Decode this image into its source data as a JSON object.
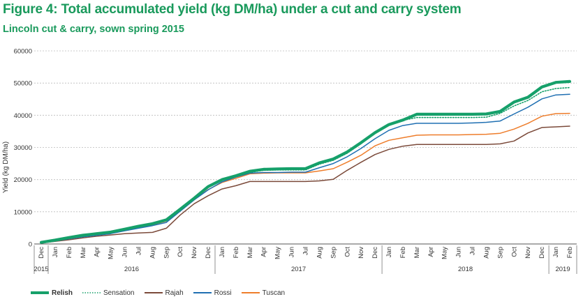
{
  "title": "Figure 4: Total accumulated yield (kg DM/ha) under a cut and carry system",
  "subtitle": "Lincoln cut & carry, sown spring 2015",
  "colors": {
    "title": "#1a9a5c",
    "Relish": "#16a06a",
    "Sensation": "#16a06a",
    "Rajah": "#7b4a3a",
    "Rossi": "#1f6fb2",
    "Tuscan": "#ee7d2b",
    "grid": "#bbbbbb"
  },
  "chart_data": {
    "type": "line",
    "ylabel": "Yield (kg DM/ha)",
    "xlabel": "",
    "ylim": [
      0,
      60000
    ],
    "yticks": [
      0,
      10000,
      20000,
      30000,
      40000,
      50000,
      60000
    ],
    "ytick_labels": [
      "0",
      "10000",
      "20000",
      "30000",
      "40000",
      "50000",
      "60000"
    ],
    "grid": "horizontal dashed",
    "legend": "bottom-left",
    "categories": [
      "Dec",
      "Jan",
      "Feb",
      "Mar",
      "Apr",
      "May",
      "Jun",
      "Jul",
      "Aug",
      "Sep",
      "Oct",
      "Nov",
      "Dec",
      "Jan",
      "Feb",
      "Mar",
      "Apr",
      "May",
      "Jun",
      "Jul",
      "Aug",
      "Sep",
      "Oct",
      "Nov",
      "Dec",
      "Jan",
      "Feb",
      "Mar",
      "Apr",
      "May",
      "Jun",
      "Jul",
      "Aug",
      "Sep",
      "Oct",
      "Nov",
      "Dec",
      "Jan",
      "Feb"
    ],
    "year_groups": [
      {
        "label": "2015",
        "start": 0,
        "end": 0
      },
      {
        "label": "2016",
        "start": 1,
        "end": 12
      },
      {
        "label": "2017",
        "start": 13,
        "end": 24
      },
      {
        "label": "2018",
        "start": 25,
        "end": 36
      },
      {
        "label": "2019",
        "start": 37,
        "end": 38
      }
    ],
    "series": [
      {
        "name": "Relish",
        "style": "thick",
        "values": [
          500,
          1200,
          2000,
          2700,
          3200,
          3700,
          4600,
          5500,
          6300,
          7500,
          10800,
          14200,
          17800,
          20000,
          21200,
          22600,
          23200,
          23300,
          23400,
          23400,
          25200,
          26400,
          28600,
          31500,
          34600,
          37100,
          38500,
          40300,
          40300,
          40300,
          40300,
          40300,
          40400,
          41200,
          44100,
          45600,
          48800,
          50200,
          50500
        ]
      },
      {
        "name": "Sensation",
        "style": "dotted",
        "values": [
          400,
          1100,
          1900,
          2600,
          3100,
          3700,
          4500,
          5400,
          6200,
          7300,
          10600,
          14100,
          17600,
          20200,
          21400,
          22200,
          22900,
          23000,
          23000,
          23000,
          24800,
          26000,
          28200,
          31200,
          34300,
          37000,
          38400,
          39300,
          39300,
          39300,
          39300,
          39300,
          39400,
          40600,
          42900,
          44600,
          47300,
          48300,
          48600
        ]
      },
      {
        "name": "Rajah",
        "style": "solid",
        "values": [
          300,
          800,
          1300,
          1900,
          2400,
          2800,
          3200,
          3400,
          3600,
          4900,
          9000,
          12500,
          15000,
          17100,
          18100,
          19400,
          19400,
          19400,
          19400,
          19400,
          19600,
          20100,
          22900,
          25400,
          27800,
          29400,
          30400,
          30900,
          30900,
          30900,
          30900,
          30900,
          30900,
          31100,
          32000,
          34500,
          36200,
          36400,
          36600
        ]
      },
      {
        "name": "Rossi",
        "style": "solid",
        "values": [
          300,
          900,
          1600,
          2200,
          2700,
          3200,
          4100,
          4900,
          5700,
          6700,
          10200,
          13700,
          16800,
          19300,
          20800,
          22000,
          22200,
          22200,
          22300,
          22300,
          23700,
          25000,
          27100,
          29700,
          32700,
          35300,
          36800,
          37500,
          37500,
          37500,
          37500,
          37600,
          37800,
          38200,
          40400,
          42500,
          45100,
          46300,
          46500
        ]
      },
      {
        "name": "Tuscan",
        "style": "solid",
        "values": [
          400,
          1100,
          1900,
          2500,
          3000,
          3500,
          4300,
          5200,
          5900,
          7100,
          10400,
          13800,
          16900,
          19100,
          20400,
          21800,
          22000,
          22100,
          22100,
          22100,
          22700,
          23400,
          25400,
          27600,
          30500,
          32200,
          33000,
          33800,
          33900,
          33900,
          33900,
          34000,
          34100,
          34400,
          35700,
          37500,
          39700,
          40500,
          40600
        ]
      }
    ]
  }
}
